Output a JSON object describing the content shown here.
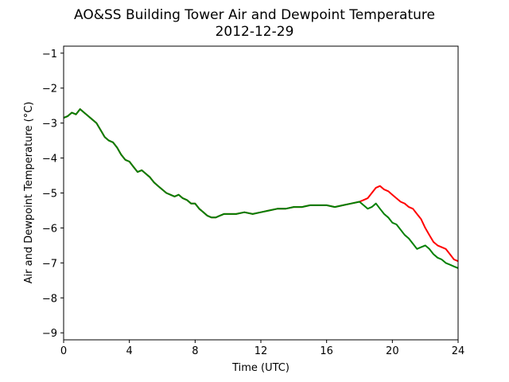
{
  "chart_data": {
    "type": "line",
    "title": "AO&SS Building Tower Air and Dewpoint Temperature",
    "subtitle": "2012-12-29",
    "xlabel": "Time (UTC)",
    "ylabel": "Air and Dewpoint Temperature (°C)",
    "xlim": [
      0,
      24
    ],
    "ylim": [
      -9.2,
      -0.8
    ],
    "xticks": [
      0,
      4,
      8,
      12,
      16,
      20,
      24
    ],
    "xtick_labels": [
      "0",
      "4",
      "8",
      "12",
      "16",
      "20",
      "24"
    ],
    "yticks": [
      -9,
      -8,
      -7,
      -6,
      -5,
      -4,
      -3,
      -2,
      -1
    ],
    "ytick_labels": [
      "−9",
      "−8",
      "−7",
      "−6",
      "−5",
      "−4",
      "−3",
      "−2",
      "−1"
    ],
    "grid": false,
    "legend": "none",
    "series": [
      {
        "color": "#ff0000",
        "x": [
          0,
          0.25,
          0.5,
          0.75,
          1.0,
          1.25,
          1.5,
          1.75,
          2.0,
          2.25,
          2.5,
          2.75,
          3.0,
          3.25,
          3.5,
          3.75,
          4.0,
          4.25,
          4.5,
          4.75,
          5.0,
          5.25,
          5.5,
          5.75,
          6.0,
          6.25,
          6.5,
          6.75,
          7.0,
          7.25,
          7.5,
          7.75,
          8.0,
          8.25,
          8.5,
          8.75,
          9.0,
          9.25,
          9.5,
          9.75,
          10.0,
          10.5,
          11.0,
          11.5,
          12.0,
          12.5,
          13.0,
          13.5,
          14.0,
          14.5,
          15.0,
          15.5,
          16.0,
          16.5,
          17.0,
          17.5,
          18.0,
          18.25,
          18.5,
          18.75,
          19.0,
          19.25,
          19.5,
          19.75,
          20.0,
          20.25,
          20.5,
          20.75,
          21.0,
          21.25,
          21.5,
          21.75,
          22.0,
          22.25,
          22.5,
          22.75,
          23.0,
          23.25,
          23.5,
          23.75,
          24.0
        ],
        "values": [
          -2.85,
          -2.8,
          -2.7,
          -2.75,
          -2.6,
          -2.7,
          -2.8,
          -2.9,
          -3.0,
          -3.2,
          -3.4,
          -3.5,
          -3.55,
          -3.7,
          -3.9,
          -4.05,
          -4.1,
          -4.25,
          -4.4,
          -4.35,
          -4.45,
          -4.55,
          -4.7,
          -4.8,
          -4.9,
          -5.0,
          -5.05,
          -5.1,
          -5.05,
          -5.15,
          -5.2,
          -5.3,
          -5.3,
          -5.45,
          -5.55,
          -5.65,
          -5.7,
          -5.7,
          -5.65,
          -5.6,
          -5.6,
          -5.6,
          -5.55,
          -5.6,
          -5.55,
          -5.5,
          -5.45,
          -5.45,
          -5.4,
          -5.4,
          -5.35,
          -5.35,
          -5.35,
          -5.4,
          -5.35,
          -5.3,
          -5.25,
          -5.2,
          -5.15,
          -5.0,
          -4.85,
          -4.8,
          -4.9,
          -4.95,
          -5.05,
          -5.15,
          -5.25,
          -5.3,
          -5.4,
          -5.45,
          -5.6,
          -5.75,
          -6.0,
          -6.2,
          -6.4,
          -6.5,
          -6.55,
          -6.6,
          -6.75,
          -6.9,
          -6.95
        ]
      },
      {
        "color": "#008000",
        "x": [
          0,
          0.25,
          0.5,
          0.75,
          1.0,
          1.25,
          1.5,
          1.75,
          2.0,
          2.25,
          2.5,
          2.75,
          3.0,
          3.25,
          3.5,
          3.75,
          4.0,
          4.25,
          4.5,
          4.75,
          5.0,
          5.25,
          5.5,
          5.75,
          6.0,
          6.25,
          6.5,
          6.75,
          7.0,
          7.25,
          7.5,
          7.75,
          8.0,
          8.25,
          8.5,
          8.75,
          9.0,
          9.25,
          9.5,
          9.75,
          10.0,
          10.5,
          11.0,
          11.5,
          12.0,
          12.5,
          13.0,
          13.5,
          14.0,
          14.5,
          15.0,
          15.5,
          16.0,
          16.5,
          17.0,
          17.5,
          18.0,
          18.25,
          18.5,
          18.75,
          19.0,
          19.25,
          19.5,
          19.75,
          20.0,
          20.25,
          20.5,
          20.75,
          21.0,
          21.25,
          21.5,
          21.75,
          22.0,
          22.25,
          22.5,
          22.75,
          23.0,
          23.25,
          23.5,
          23.75,
          24.0
        ],
        "values": [
          -2.85,
          -2.8,
          -2.7,
          -2.75,
          -2.6,
          -2.7,
          -2.8,
          -2.9,
          -3.0,
          -3.2,
          -3.4,
          -3.5,
          -3.55,
          -3.7,
          -3.9,
          -4.05,
          -4.1,
          -4.25,
          -4.4,
          -4.35,
          -4.45,
          -4.55,
          -4.7,
          -4.8,
          -4.9,
          -5.0,
          -5.05,
          -5.1,
          -5.05,
          -5.15,
          -5.2,
          -5.3,
          -5.3,
          -5.45,
          -5.55,
          -5.65,
          -5.7,
          -5.7,
          -5.65,
          -5.6,
          -5.6,
          -5.6,
          -5.55,
          -5.6,
          -5.55,
          -5.5,
          -5.45,
          -5.45,
          -5.4,
          -5.4,
          -5.35,
          -5.35,
          -5.35,
          -5.4,
          -5.35,
          -5.3,
          -5.25,
          -5.35,
          -5.45,
          -5.4,
          -5.3,
          -5.45,
          -5.6,
          -5.7,
          -5.85,
          -5.9,
          -6.05,
          -6.2,
          -6.3,
          -6.45,
          -6.6,
          -6.55,
          -6.5,
          -6.6,
          -6.75,
          -6.85,
          -6.9,
          -7.0,
          -7.05,
          -7.1,
          -7.15
        ]
      }
    ]
  }
}
